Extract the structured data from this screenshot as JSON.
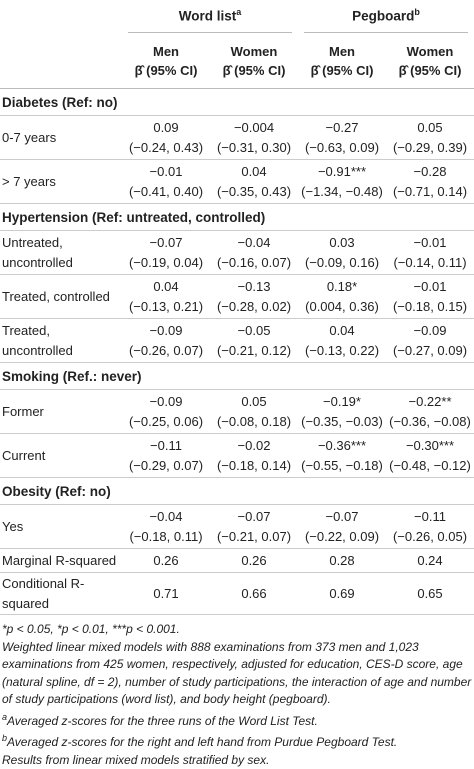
{
  "header": {
    "groups": [
      {
        "label": "Word list",
        "note": "a"
      },
      {
        "label": "Pegboard",
        "note": "b"
      }
    ],
    "columns": [
      {
        "sex": "Men",
        "stat": "β̂ (95% CI)"
      },
      {
        "sex": "Women",
        "stat": "β̂ (95% CI)"
      },
      {
        "sex": "Men",
        "stat": "β̂ (95% CI)"
      },
      {
        "sex": "Women",
        "stat": "β̂ (95% CI)"
      }
    ]
  },
  "sections": [
    {
      "title": "Diabetes (Ref: no)",
      "rows": [
        {
          "label": "0-7 years",
          "values": [
            [
              "0.09",
              "(−0.24, 0.43)"
            ],
            [
              "−0.004",
              "(−0.31, 0.30)"
            ],
            [
              "−0.27",
              "(−0.63, 0.09)"
            ],
            [
              "0.05",
              "(−0.29, 0.39)"
            ]
          ]
        },
        {
          "label": "> 7 years",
          "values": [
            [
              "−0.01",
              "(−0.41, 0.40)"
            ],
            [
              "0.04",
              "(−0.35, 0.43)"
            ],
            [
              "−0.91***",
              "(−1.34, −0.48)"
            ],
            [
              "−0.28",
              "(−0.71, 0.14)"
            ]
          ]
        }
      ]
    },
    {
      "title": "Hypertension (Ref: untreated, controlled)",
      "rows": [
        {
          "label": "Untreated, uncontrolled",
          "values": [
            [
              "−0.07",
              "(−0.19, 0.04)"
            ],
            [
              "−0.04",
              "(−0.16, 0.07)"
            ],
            [
              "0.03",
              "(−0.09, 0.16)"
            ],
            [
              "−0.01",
              "(−0.14, 0.11)"
            ]
          ]
        },
        {
          "label": "Treated, controlled",
          "values": [
            [
              "0.04",
              "(−0.13, 0.21)"
            ],
            [
              "−0.13",
              "(−0.28, 0.02)"
            ],
            [
              "0.18*",
              "(0.004, 0.36)"
            ],
            [
              "−0.01",
              "(−0.18, 0.15)"
            ]
          ]
        },
        {
          "label": "Treated, uncontrolled",
          "values": [
            [
              "−0.09",
              "(−0.26, 0.07)"
            ],
            [
              "−0.05",
              "(−0.21, 0.12)"
            ],
            [
              "0.04",
              "(−0.13, 0.22)"
            ],
            [
              "−0.09",
              "(−0.27, 0.09)"
            ]
          ]
        }
      ]
    },
    {
      "title": "Smoking (Ref.: never)",
      "rows": [
        {
          "label": "Former",
          "values": [
            [
              "−0.09",
              "(−0.25, 0.06)"
            ],
            [
              "0.05",
              "(−0.08, 0.18)"
            ],
            [
              "−0.19*",
              "(−0.35, −0.03)"
            ],
            [
              "−0.22**",
              "(−0.36, −0.08)"
            ]
          ]
        },
        {
          "label": "Current",
          "values": [
            [
              "−0.11",
              "(−0.29, 0.07)"
            ],
            [
              "−0.02",
              "(−0.18, 0.14)"
            ],
            [
              "−0.36***",
              "(−0.55, −0.18)"
            ],
            [
              "−0.30***",
              "(−0.48, −0.12)"
            ]
          ]
        }
      ]
    },
    {
      "title": "Obesity (Ref: no)",
      "rows": [
        {
          "label": "Yes",
          "values": [
            [
              "−0.04",
              "(−0.18, 0.11)"
            ],
            [
              "−0.07",
              "(−0.21, 0.07)"
            ],
            [
              "−0.07",
              "(−0.22, 0.09)"
            ],
            [
              "−0.11",
              "(−0.26, 0.05)"
            ]
          ]
        }
      ]
    }
  ],
  "summary": [
    {
      "label": "Marginal R-squared",
      "values": [
        "0.26",
        "0.26",
        "0.28",
        "0.24"
      ]
    },
    {
      "label": "Conditional R-squared",
      "values": [
        "0.71",
        "0.66",
        "0.69",
        "0.65"
      ]
    }
  ],
  "footnotes": {
    "significance": "*p < 0.05, *p < 0.01, ***p < 0.001.",
    "methods": "Weighted linear mixed models with 888 examinations from 373 men and 1,023 examinations from 425 women, respectively, adjusted for education, CES-D score, age (natural spline, df = 2), number of study participations, the interaction of age and number of study participations (word list), and body height (pegboard).",
    "notes": [
      {
        "mark": "a",
        "text": "Averaged z-scores for the three runs of the Word List Test."
      },
      {
        "mark": "b",
        "text": "Averaged z-scores for the right and left hand from Purdue Pegboard Test."
      }
    ],
    "results": "Results from linear mixed models stratified by sex."
  }
}
